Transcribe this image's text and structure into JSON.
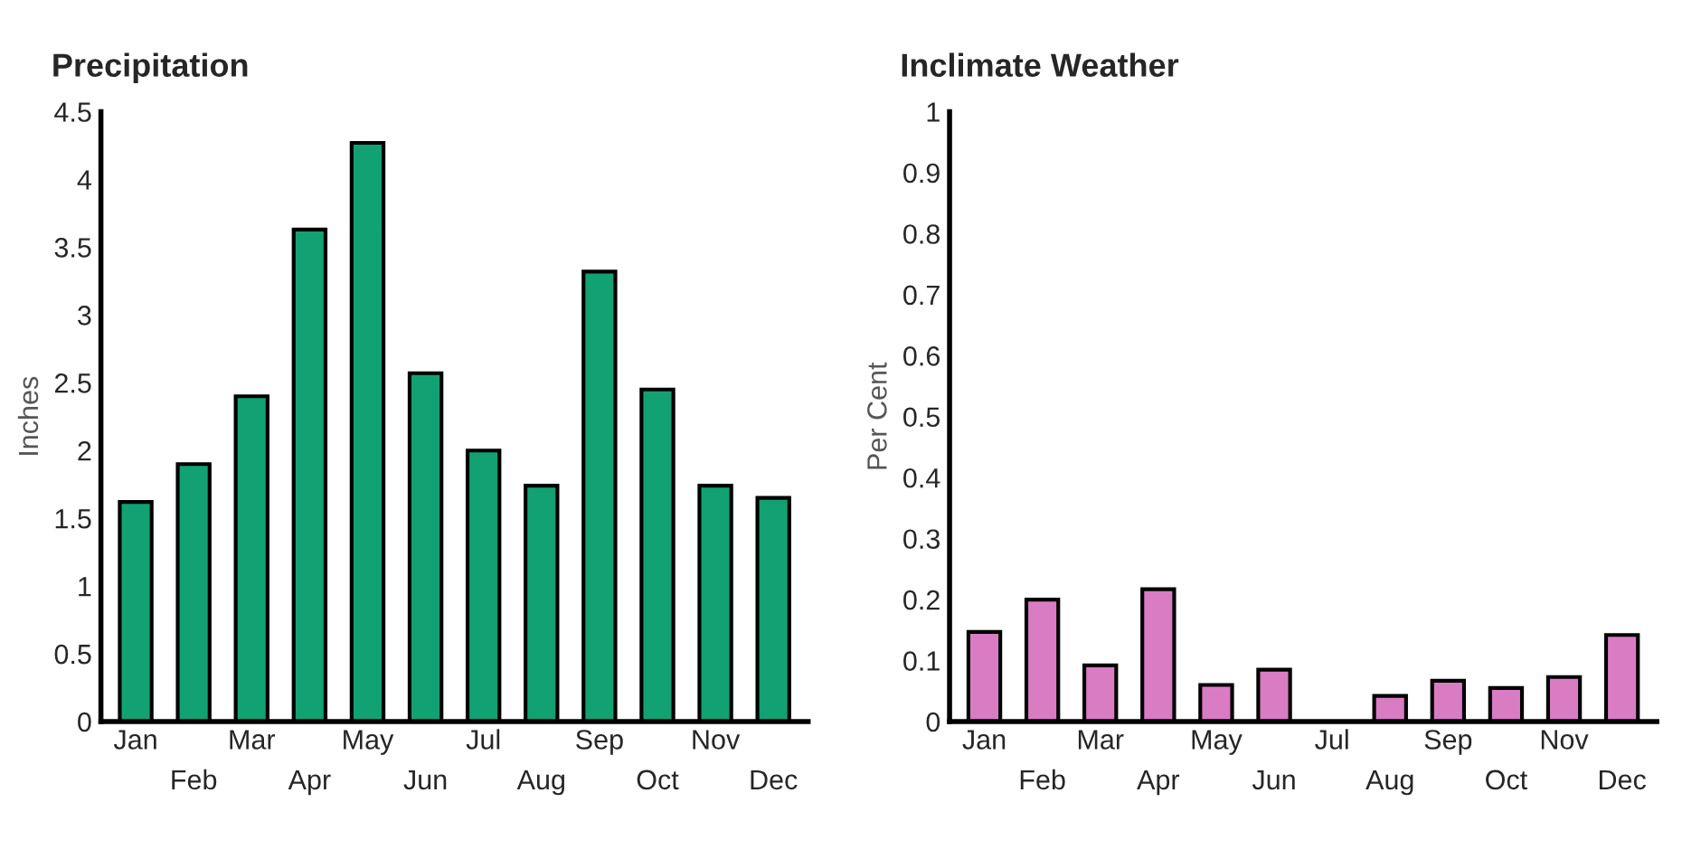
{
  "chart_data": [
    {
      "type": "bar",
      "title": "Precipitation",
      "ylabel": "Inches",
      "categories": [
        "Jan",
        "Feb",
        "Mar",
        "Apr",
        "May",
        "Jun",
        "Jul",
        "Aug",
        "Sep",
        "Oct",
        "Nov",
        "Dec"
      ],
      "series": [
        {
          "color": "#12a173",
          "values": [
            1.62,
            1.9,
            2.4,
            3.63,
            4.27,
            2.57,
            2.0,
            1.74,
            3.32,
            2.45,
            1.74,
            1.65
          ]
        }
      ],
      "ylim": [
        0,
        4.5
      ],
      "yticks": [
        0,
        {
          "value": 0.5,
          "label": "0.5"
        },
        1,
        {
          "value": 1.5,
          "label": "1.5"
        },
        2,
        {
          "value": 2.5,
          "label": "2.5"
        },
        3,
        {
          "value": 3.5,
          "label": "3.5"
        },
        4,
        {
          "value": 4.5,
          "label": "4.5"
        }
      ],
      "grid": false,
      "legend": false
    },
    {
      "type": "bar",
      "title": "Inclimate Weather",
      "ylabel": "Per Cent",
      "categories": [
        "Jan",
        "Feb",
        "Mar",
        "Apr",
        "May",
        "Jun",
        "Jul",
        "Aug",
        "Sep",
        "Oct",
        "Nov",
        "Dec"
      ],
      "series": [
        {
          "color": "#d97cc4",
          "values": [
            0.147,
            0.2,
            0.092,
            0.217,
            0.06,
            0.085,
            null,
            0.042,
            0.067,
            0.055,
            0.073,
            0.142
          ]
        }
      ],
      "ylim": [
        0,
        1
      ],
      "yticks": [
        0,
        0.1,
        0.2,
        0.3,
        0.4,
        0.5,
        0.6,
        0.7,
        0.8,
        0.9,
        1
      ],
      "grid": false,
      "legend": false
    }
  ]
}
